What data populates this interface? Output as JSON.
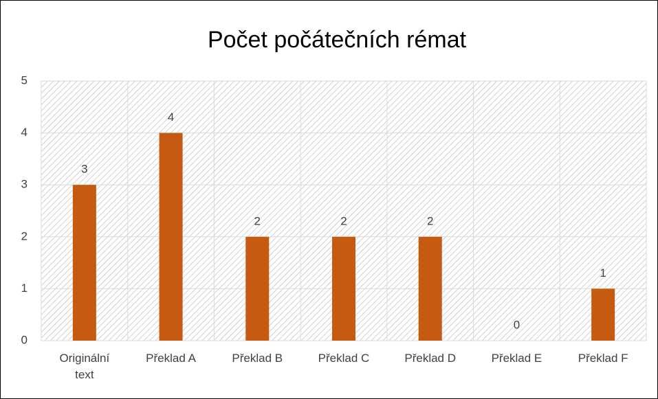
{
  "chart_data": {
    "type": "bar",
    "title": "Počet počátečních rémat",
    "categories": [
      "Originální text",
      "Překlad A",
      "Překlad B",
      "Překlad C",
      "Překlad D",
      "Překlad E",
      "Překlad F"
    ],
    "values": [
      3,
      4,
      2,
      2,
      2,
      0,
      1
    ],
    "color": "#c55a11",
    "ylim": [
      0,
      5
    ],
    "yticks": [
      0,
      1,
      2,
      3,
      4,
      5
    ],
    "grid": true
  }
}
